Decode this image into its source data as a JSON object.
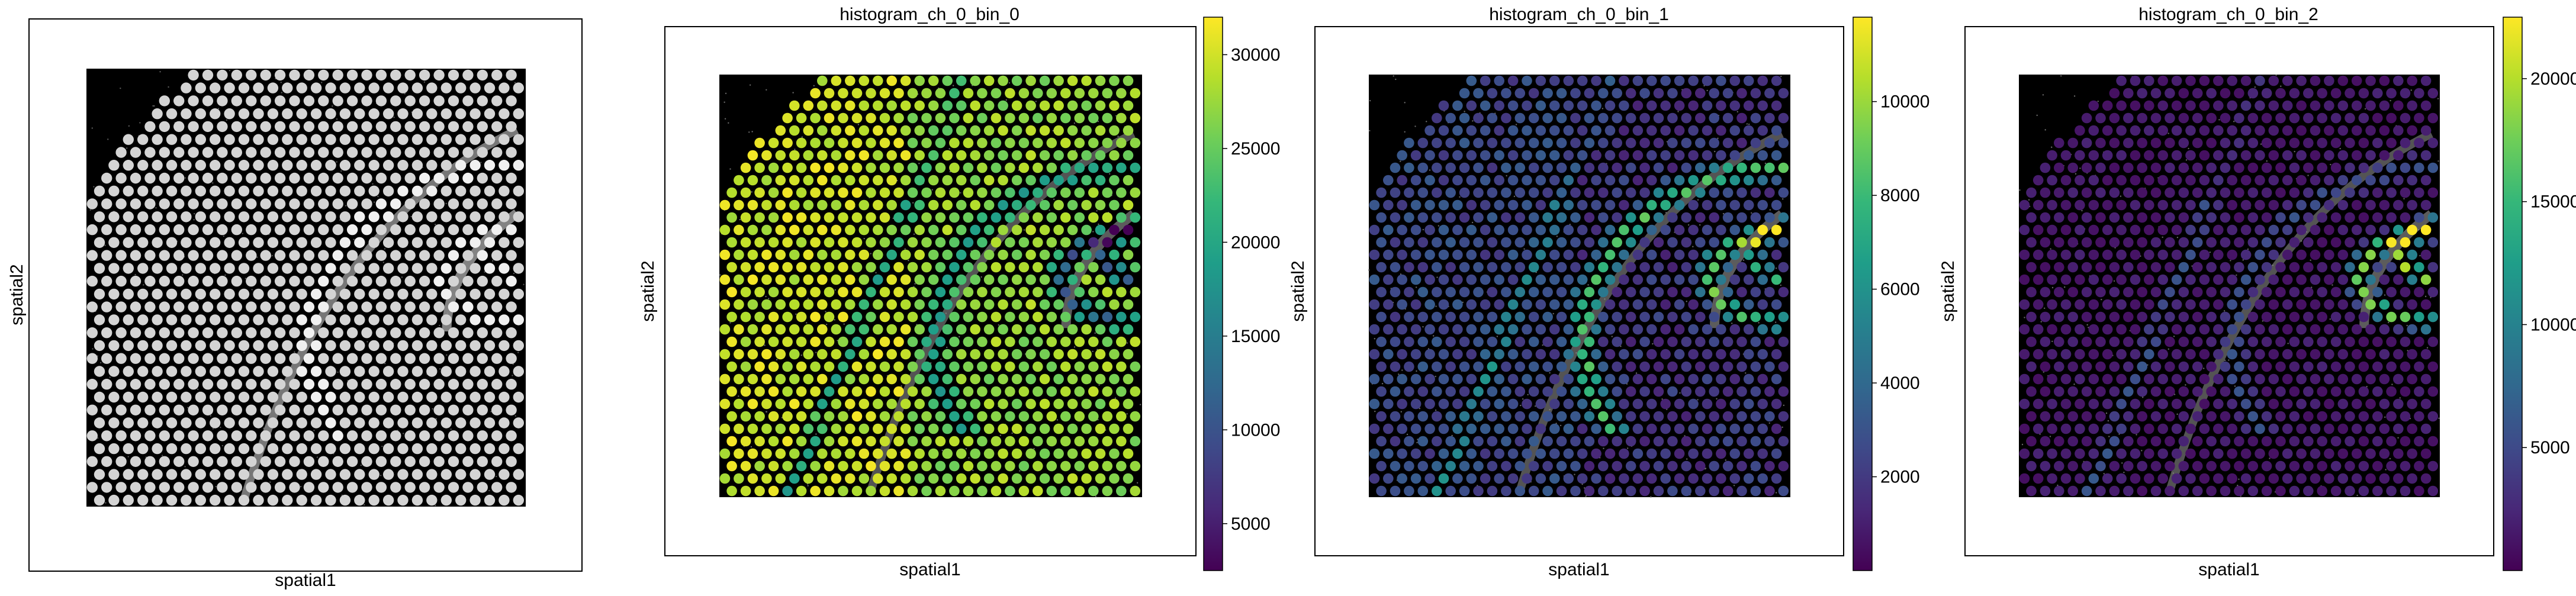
{
  "figure": {
    "panels": [
      {
        "id": "he",
        "title": "",
        "xlabel": "spatial1",
        "ylabel": "spatial2",
        "has_colorbar": false
      },
      {
        "id": "bin0",
        "title": "histogram_ch_0_bin_0",
        "xlabel": "spatial1",
        "ylabel": "spatial2",
        "has_colorbar": true
      },
      {
        "id": "bin1",
        "title": "histogram_ch_0_bin_1",
        "xlabel": "spatial1",
        "ylabel": "spatial2",
        "has_colorbar": true
      },
      {
        "id": "bin2",
        "title": "histogram_ch_0_bin_2",
        "xlabel": "spatial1",
        "ylabel": "spatial2",
        "has_colorbar": true
      }
    ]
  },
  "chart_data": [
    {
      "type": "scatter",
      "title": "",
      "xlabel": "spatial1",
      "ylabel": "spatial2",
      "background": "H&E tissue image (grayscale)",
      "spot_color": "#d9d9d9",
      "grid": false
    },
    {
      "type": "scatter",
      "title": "histogram_ch_0_bin_0",
      "xlabel": "spatial1",
      "ylabel": "spatial2",
      "colormap": "viridis",
      "color_range": [
        2500,
        32000
      ],
      "colorbar_ticks": [
        5000,
        10000,
        15000,
        20000,
        25000,
        30000
      ],
      "colorbar_tick_labels": [
        "5000",
        "10000",
        "15000",
        "20000",
        "25000",
        "30000"
      ],
      "grid": false
    },
    {
      "type": "scatter",
      "title": "histogram_ch_0_bin_1",
      "xlabel": "spatial1",
      "ylabel": "spatial2",
      "colormap": "viridis",
      "color_range": [
        0,
        11800
      ],
      "colorbar_ticks": [
        2000,
        4000,
        6000,
        8000,
        10000
      ],
      "colorbar_tick_labels": [
        "2000",
        "4000",
        "6000",
        "8000",
        "10000"
      ],
      "grid": false
    },
    {
      "type": "scatter",
      "title": "histogram_ch_0_bin_2",
      "xlabel": "spatial1",
      "ylabel": "spatial2",
      "colormap": "viridis",
      "color_range": [
        0,
        22500
      ],
      "colorbar_ticks": [
        5000,
        10000,
        15000,
        20000
      ],
      "colorbar_tick_labels": [
        "5000",
        "10000",
        "15000",
        "20000"
      ],
      "grid": false
    }
  ],
  "colors": {
    "viridis": [
      "#440154",
      "#482878",
      "#3e4a89",
      "#31688e",
      "#26828e",
      "#1f9e89",
      "#35b779",
      "#6ece58",
      "#b5de2b",
      "#fde725"
    ],
    "tissue_background": "#000000",
    "axes_frame": "#000000"
  }
}
